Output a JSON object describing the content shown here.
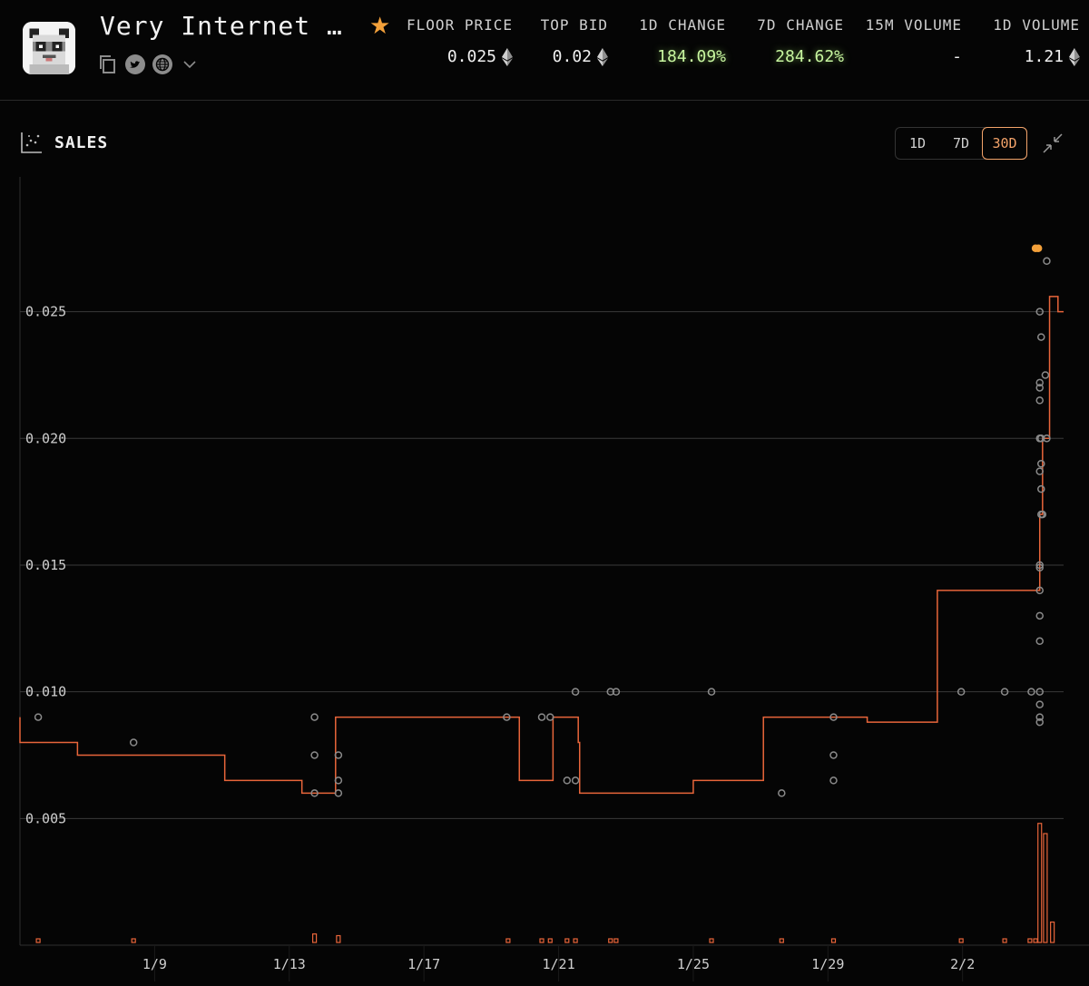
{
  "collection": {
    "name": "Very Internet …"
  },
  "stats": [
    {
      "label": "FLOOR PRICE",
      "value": "0.025",
      "eth": true,
      "positive": false
    },
    {
      "label": "TOP BID",
      "value": "0.02",
      "eth": true,
      "positive": false
    },
    {
      "label": "1D CHANGE",
      "value": "184.09%",
      "eth": false,
      "positive": true
    },
    {
      "label": "7D CHANGE",
      "value": "284.62%",
      "eth": false,
      "positive": true
    },
    {
      "label": "15M VOLUME",
      "value": "-",
      "eth": false,
      "positive": false
    },
    {
      "label": "1D VOLUME",
      "value": "1.21",
      "eth": true,
      "positive": false
    }
  ],
  "panel": {
    "title": "SALES",
    "ranges": [
      "1D",
      "7D",
      "30D"
    ],
    "active_range": "30D"
  },
  "colors": {
    "accent": "#f3a36a",
    "floor_line": "#e8653a",
    "positive": "#c8f7a0",
    "dot": "#8a8a8a",
    "grid": "#3a3a3a"
  },
  "icons": [
    "copy-icon",
    "twitter-icon",
    "globe-icon",
    "chevron-down-icon",
    "star-icon",
    "chart-icon",
    "collapse-icon",
    "eth-icon"
  ],
  "chart_data": {
    "type": "scatter",
    "title": "",
    "xlabel": "",
    "ylabel": "",
    "xlim": [
      "2023-01-05",
      "2023-02-05"
    ],
    "ylim": [
      0,
      0.0305
    ],
    "y_ticks": [
      "0.005",
      "0.010",
      "0.015",
      "0.020",
      "0.025"
    ],
    "x_ticks": [
      "1/9",
      "1/13",
      "1/17",
      "1/21",
      "1/25",
      "1/29",
      "2/2"
    ],
    "grid": true,
    "series": [
      {
        "kind": "sales",
        "points": [
          [
            "2023-01-05T13:00",
            0.009
          ],
          [
            "2023-01-08T09:00",
            0.008
          ],
          [
            "2023-01-13T18:00",
            0.009
          ],
          [
            "2023-01-13T18:00",
            0.0075
          ],
          [
            "2023-01-13T18:00",
            0.006
          ],
          [
            "2023-01-14T11:00",
            0.0075
          ],
          [
            "2023-01-14T11:00",
            0.0065
          ],
          [
            "2023-01-14T11:00",
            0.006
          ],
          [
            "2023-01-19T11:00",
            0.009
          ],
          [
            "2023-01-20T12:00",
            0.009
          ],
          [
            "2023-01-20T18:00",
            0.009
          ],
          [
            "2023-01-21T06:00",
            0.0065
          ],
          [
            "2023-01-21T12:00",
            0.01
          ],
          [
            "2023-01-21T12:00",
            0.0065
          ],
          [
            "2023-01-22T13:00",
            0.01
          ],
          [
            "2023-01-22T17:00",
            0.01
          ],
          [
            "2023-01-25T13:00",
            0.01
          ],
          [
            "2023-01-27T15:00",
            0.006
          ],
          [
            "2023-01-29T04:00",
            0.009
          ],
          [
            "2023-01-29T04:00",
            0.0075
          ],
          [
            "2023-01-29T04:00",
            0.0065
          ],
          [
            "2023-02-01T23:00",
            0.01
          ],
          [
            "2023-02-03T06:00",
            0.01
          ],
          [
            "2023-02-04T01:00",
            0.01
          ],
          [
            "2023-02-04T07:00",
            0.025
          ],
          [
            "2023-02-04T08:00",
            0.024
          ],
          [
            "2023-02-04T07:00",
            0.0222
          ],
          [
            "2023-02-04T07:00",
            0.022
          ],
          [
            "2023-02-04T07:00",
            0.0215
          ],
          [
            "2023-02-04T07:00",
            0.02
          ],
          [
            "2023-02-04T08:00",
            0.02
          ],
          [
            "2023-02-04T08:00",
            0.019
          ],
          [
            "2023-02-04T07:00",
            0.0187
          ],
          [
            "2023-02-04T08:00",
            0.018
          ],
          [
            "2023-02-04T08:00",
            0.017
          ],
          [
            "2023-02-04T09:00",
            0.017
          ],
          [
            "2023-02-04T07:00",
            0.015
          ],
          [
            "2023-02-04T07:00",
            0.0149
          ],
          [
            "2023-02-04T07:00",
            0.014
          ],
          [
            "2023-02-04T07:00",
            0.013
          ],
          [
            "2023-02-04T07:00",
            0.012
          ],
          [
            "2023-02-04T07:00",
            0.01
          ],
          [
            "2023-02-04T07:00",
            0.0095
          ],
          [
            "2023-02-04T07:00",
            0.009
          ],
          [
            "2023-02-04T07:00",
            0.0088
          ],
          [
            "2023-02-04T11:00",
            0.0225
          ],
          [
            "2023-02-04T12:00",
            0.02
          ],
          [
            "2023-02-04T12:00",
            0.027
          ],
          [
            "2023-02-04T04:00",
            0.0275
          ],
          [
            "2023-02-04T06:00",
            0.0275
          ]
        ]
      },
      {
        "kind": "floor",
        "steps": [
          [
            "2023-01-05T00:00",
            0.009
          ],
          [
            "2023-01-05T00:00",
            0.008
          ],
          [
            "2023-01-06T17:00",
            0.0075
          ],
          [
            "2023-01-11T02:00",
            0.0065
          ],
          [
            "2023-01-13T09:00",
            0.006
          ],
          [
            "2023-01-14T09:00",
            0.009
          ],
          [
            "2023-01-19T20:00",
            0.0065
          ],
          [
            "2023-01-20T20:00",
            0.009
          ],
          [
            "2023-01-21T14:00",
            0.008
          ],
          [
            "2023-01-21T15:00",
            0.006
          ],
          [
            "2023-01-25T00:00",
            0.0065
          ],
          [
            "2023-01-27T02:00",
            0.009
          ],
          [
            "2023-01-30T04:00",
            0.0088
          ],
          [
            "2023-02-01T06:00",
            0.014
          ],
          [
            "2023-02-04T07:00",
            0.017
          ],
          [
            "2023-02-04T09:00",
            0.02
          ],
          [
            "2023-02-04T14:00",
            0.0256
          ],
          [
            "2023-02-04T20:00",
            0.025
          ],
          [
            "2023-02-05T00:00",
            0.025
          ]
        ]
      },
      {
        "kind": "volume",
        "bars": [
          [
            "2023-01-05T13:00",
            0.08
          ],
          [
            "2023-01-08T09:00",
            0.08
          ],
          [
            "2023-01-13T18:00",
            0.5
          ],
          [
            "2023-01-14T11:00",
            0.4
          ],
          [
            "2023-01-19T12:00",
            0.06
          ],
          [
            "2023-01-20T12:00",
            0.06
          ],
          [
            "2023-01-20T18:00",
            0.06
          ],
          [
            "2023-01-21T06:00",
            0.06
          ],
          [
            "2023-01-21T12:00",
            0.2
          ],
          [
            "2023-01-22T13:00",
            0.06
          ],
          [
            "2023-01-22T17:00",
            0.06
          ],
          [
            "2023-01-25T13:00",
            0.06
          ],
          [
            "2023-01-27T15:00",
            0.06
          ],
          [
            "2023-01-29T04:00",
            0.2
          ],
          [
            "2023-02-01T23:00",
            0.06
          ],
          [
            "2023-02-03T06:00",
            0.06
          ],
          [
            "2023-02-04T00:00",
            0.06
          ],
          [
            "2023-02-04T04:00",
            0.2
          ],
          [
            "2023-02-04T07:00",
            7.0
          ],
          [
            "2023-02-04T11:00",
            6.4
          ],
          [
            "2023-02-04T16:00",
            1.2
          ]
        ],
        "max": 8.0
      }
    ]
  }
}
